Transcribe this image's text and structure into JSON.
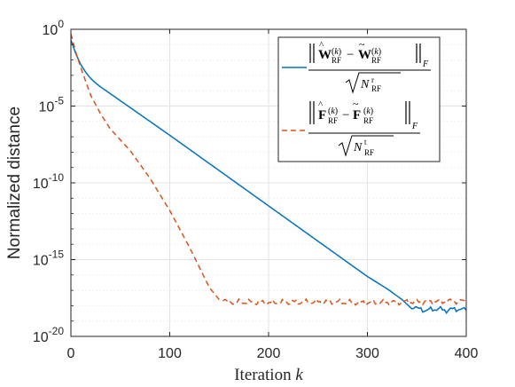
{
  "chart_data": {
    "type": "line",
    "xlabel": "Iteration",
    "xlabel_var": "k",
    "ylabel": "Normalized distance",
    "xlim": [
      0,
      400
    ],
    "ylim_log10": [
      -20,
      0
    ],
    "yscale": "log",
    "grid": true,
    "minor_grid_y": true,
    "legend_placement": "top-right",
    "x_ticks": [
      "0",
      "100",
      "200",
      "300",
      "400"
    ],
    "y_ticks": [
      {
        "base": "10",
        "exp": "0"
      },
      {
        "base": "10",
        "exp": "-5"
      },
      {
        "base": "10",
        "exp": "-10"
      },
      {
        "base": "10",
        "exp": "-15"
      },
      {
        "base": "10",
        "exp": "-20"
      }
    ],
    "series": [
      {
        "legend": {
          "numerator": "‖Ŵ_RF^(k) − W̃_RF^(k)‖_F",
          "denominator": "√(N_RF^r)"
        },
        "color": "#0072BD",
        "dash": "solid",
        "x": [
          0,
          5,
          10,
          15,
          20,
          25,
          30,
          40,
          60,
          100,
          150,
          200,
          250,
          300,
          320,
          335,
          345,
          350,
          360,
          370,
          380,
          390,
          400
        ],
        "log10_y": [
          -0.7,
          -1.6,
          -2.3,
          -2.8,
          -3.2,
          -3.5,
          -3.75,
          -4.2,
          -5.1,
          -6.9,
          -9.2,
          -11.5,
          -13.8,
          -16.1,
          -16.9,
          -17.6,
          -18.2,
          -18.2,
          -18.3,
          -18.2,
          -18.3,
          -18.2,
          -18.3
        ]
      },
      {
        "legend": {
          "numerator": "‖F̂_RF^(k) − F̃_RF^(k)‖_F",
          "denominator": "√(N_RF^t)"
        },
        "color": "#D95319",
        "dash": "dashed",
        "x": [
          0,
          5,
          10,
          15,
          20,
          30,
          40,
          60,
          80,
          100,
          120,
          140,
          150,
          160,
          200,
          250,
          300,
          350,
          400
        ],
        "log10_y": [
          -0.3,
          -1.5,
          -2.5,
          -3.4,
          -4.3,
          -5.5,
          -6.5,
          -7.9,
          -9.7,
          -11.8,
          -14.2,
          -16.8,
          -17.6,
          -17.75,
          -17.8,
          -17.75,
          -17.8,
          -17.75,
          -17.7
        ]
      }
    ]
  }
}
